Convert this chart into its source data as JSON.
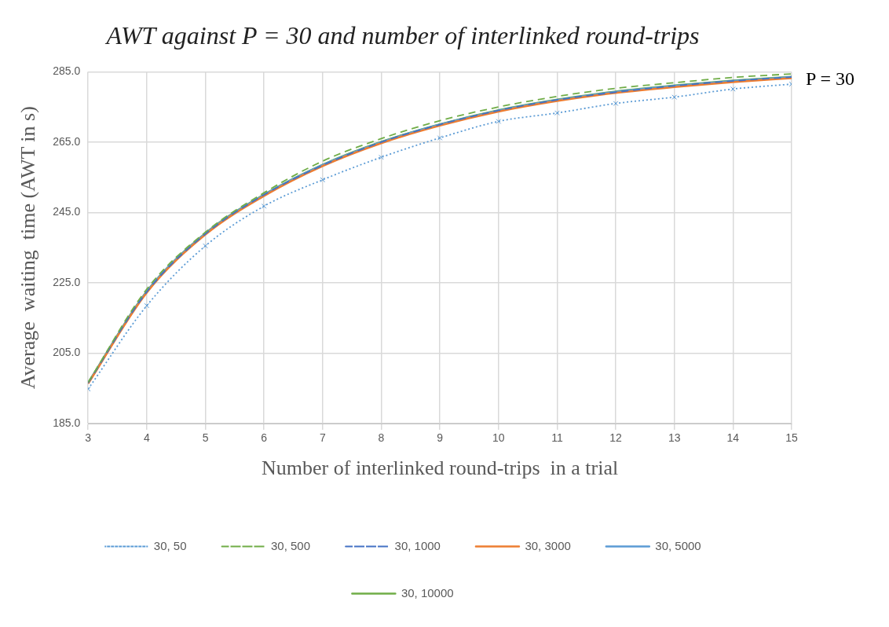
{
  "chart_data": {
    "type": "line",
    "title": "AWT against P = 30 and number of interlinked round-trips",
    "xlabel": "Number of interlinked round-trips  in a trial",
    "ylabel": "Average  waiting  time (AWT in s)",
    "annotations": [
      "P = 30"
    ],
    "x": [
      3,
      4,
      5,
      6,
      7,
      8,
      9,
      10,
      11,
      12,
      13,
      14,
      15
    ],
    "xlim": [
      3,
      15
    ],
    "xticks": [
      3,
      4,
      5,
      6,
      7,
      8,
      9,
      10,
      11,
      12,
      13,
      14,
      15
    ],
    "ylim": [
      185,
      285
    ],
    "yticks": [
      {
        "value": 185,
        "label": "185.0"
      },
      {
        "value": 205,
        "label": "205.0"
      },
      {
        "value": 225,
        "label": "225.0"
      },
      {
        "value": 245,
        "label": "245.0"
      },
      {
        "value": 265,
        "label": "265.0"
      },
      {
        "value": 285,
        "label": "285.0"
      }
    ],
    "grid": true,
    "legend": "bottom",
    "series": [
      {
        "name": "30, 50",
        "color": "#5b9bd5",
        "line_style": "dotted",
        "marker": "cross",
        "values": [
          194.8,
          218.5,
          235.5,
          246.8,
          254.3,
          260.7,
          266.2,
          270.9,
          273.3,
          276.0,
          277.8,
          280.1,
          281.5
        ]
      },
      {
        "name": "30, 500",
        "color": "#70ad47",
        "line_style": "dashed",
        "marker": "none",
        "values": [
          196.7,
          223.2,
          239.4,
          250.6,
          259.6,
          266.0,
          271.1,
          275.0,
          278.0,
          280.3,
          281.9,
          283.4,
          284.4
        ]
      },
      {
        "name": "30, 1000",
        "color": "#4472c4",
        "line_style": "dashed",
        "marker": "none",
        "values": [
          196.5,
          222.4,
          238.9,
          250.0,
          258.4,
          265.0,
          270.0,
          274.0,
          277.0,
          279.2,
          281.0,
          282.4,
          283.5
        ]
      },
      {
        "name": "30, 3000",
        "color": "#ed7d31",
        "line_style": "solid",
        "marker": "none",
        "values": [
          196.3,
          222.2,
          238.7,
          249.7,
          258.2,
          264.7,
          269.7,
          273.7,
          276.7,
          279.0,
          280.7,
          282.1,
          283.2
        ]
      },
      {
        "name": "30, 5000",
        "color": "#5b9bd5",
        "line_style": "solid",
        "marker": "none",
        "values": [
          196.5,
          222.5,
          239.0,
          250.0,
          258.5,
          265.0,
          270.0,
          274.0,
          277.0,
          279.3,
          281.0,
          282.4,
          283.5
        ]
      },
      {
        "name": "30, 10000",
        "color": "#70ad47",
        "line_style": "solid",
        "marker": "none",
        "values": [
          196.6,
          222.6,
          239.1,
          250.1,
          258.6,
          265.1,
          270.1,
          274.1,
          277.1,
          279.4,
          281.1,
          282.5,
          283.6
        ]
      }
    ]
  }
}
